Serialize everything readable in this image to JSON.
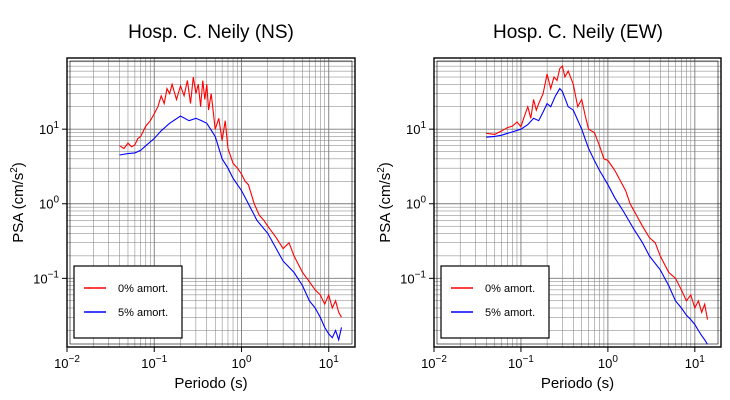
{
  "chart_data": [
    {
      "type": "line",
      "title": "Hosp. C. Neily (NS)",
      "xlabel": "Periodo (s)",
      "ylabel": "PSA (cm/s²)",
      "xscale": "log",
      "yscale": "log",
      "xlim": [
        0.01,
        20
      ],
      "ylim": [
        0.012,
        90
      ],
      "grid": true,
      "legend_position": "bottom-left",
      "xticks": [
        {
          "base": "10",
          "exp": "−2",
          "value": 0.01
        },
        {
          "base": "10",
          "exp": "−1",
          "value": 0.1
        },
        {
          "base": "10",
          "exp": "0",
          "value": 1
        },
        {
          "base": "10",
          "exp": "1",
          "value": 10
        }
      ],
      "yticks": [
        {
          "base": "10",
          "exp": "−1",
          "value": 0.1
        },
        {
          "base": "10",
          "exp": "0",
          "value": 1
        },
        {
          "base": "10",
          "exp": "1",
          "value": 10
        }
      ],
      "series": [
        {
          "name": "0% amort.",
          "color": "#ff0000",
          "x": [
            0.04,
            0.045,
            0.05,
            0.055,
            0.06,
            0.065,
            0.07,
            0.08,
            0.09,
            0.1,
            0.11,
            0.12,
            0.13,
            0.14,
            0.15,
            0.16,
            0.18,
            0.2,
            0.22,
            0.24,
            0.26,
            0.28,
            0.3,
            0.32,
            0.34,
            0.36,
            0.38,
            0.4,
            0.42,
            0.45,
            0.5,
            0.55,
            0.6,
            0.65,
            0.7,
            0.8,
            0.9,
            1.0,
            1.1,
            1.2,
            1.4,
            1.6,
            1.8,
            2.0,
            2.5,
            3.0,
            3.5,
            4.0,
            5.0,
            6.0,
            7.0,
            8.0,
            9.0,
            10.0,
            11.0,
            12.0,
            13.0,
            14.0
          ],
          "y": [
            6,
            5.5,
            6.5,
            5.8,
            6.2,
            7.5,
            8,
            11,
            13,
            16,
            20,
            28,
            22,
            35,
            30,
            40,
            25,
            38,
            28,
            45,
            22,
            50,
            30,
            40,
            20,
            45,
            25,
            40,
            18,
            30,
            10,
            14,
            7,
            13,
            5.5,
            3.5,
            3.0,
            2.5,
            2.0,
            1.8,
            1.0,
            0.7,
            0.6,
            0.5,
            0.35,
            0.25,
            0.3,
            0.2,
            0.12,
            0.09,
            0.07,
            0.06,
            0.045,
            0.06,
            0.04,
            0.05,
            0.035,
            0.03
          ]
        },
        {
          "name": "5% amort.",
          "color": "#0000ff",
          "x": [
            0.04,
            0.05,
            0.06,
            0.07,
            0.08,
            0.1,
            0.12,
            0.15,
            0.2,
            0.25,
            0.3,
            0.35,
            0.4,
            0.5,
            0.6,
            0.7,
            0.8,
            1.0,
            1.2,
            1.5,
            2.0,
            2.5,
            3.0,
            4.0,
            5.0,
            6.0,
            7.0,
            8.0,
            9.0,
            10.0,
            11.0,
            12.0,
            13.0,
            14.0
          ],
          "y": [
            4.5,
            4.7,
            4.8,
            5.2,
            6.0,
            7.5,
            9.5,
            12,
            15,
            13,
            14,
            13,
            12,
            8,
            4,
            3,
            2.2,
            1.5,
            1.0,
            0.6,
            0.4,
            0.25,
            0.17,
            0.12,
            0.08,
            0.05,
            0.04,
            0.03,
            0.022,
            0.018,
            0.016,
            0.02,
            0.015,
            0.022
          ]
        }
      ]
    },
    {
      "type": "line",
      "title": "Hosp. C. Neily (EW)",
      "xlabel": "Periodo (s)",
      "ylabel": "PSA (cm/s²)",
      "xscale": "log",
      "yscale": "log",
      "xlim": [
        0.01,
        20
      ],
      "ylim": [
        0.012,
        90
      ],
      "grid": true,
      "legend_position": "bottom-left",
      "xticks": [
        {
          "base": "10",
          "exp": "−2",
          "value": 0.01
        },
        {
          "base": "10",
          "exp": "−1",
          "value": 0.1
        },
        {
          "base": "10",
          "exp": "0",
          "value": 1
        },
        {
          "base": "10",
          "exp": "1",
          "value": 10
        }
      ],
      "yticks": [
        {
          "base": "10",
          "exp": "−1",
          "value": 0.1
        },
        {
          "base": "10",
          "exp": "0",
          "value": 1
        },
        {
          "base": "10",
          "exp": "1",
          "value": 10
        }
      ],
      "series": [
        {
          "name": "0% amort.",
          "color": "#ff0000",
          "x": [
            0.04,
            0.05,
            0.06,
            0.07,
            0.08,
            0.09,
            0.1,
            0.11,
            0.12,
            0.13,
            0.14,
            0.15,
            0.16,
            0.18,
            0.2,
            0.22,
            0.24,
            0.26,
            0.28,
            0.3,
            0.32,
            0.35,
            0.4,
            0.45,
            0.5,
            0.55,
            0.6,
            0.7,
            0.8,
            0.9,
            1.0,
            1.2,
            1.4,
            1.6,
            1.8,
            2.0,
            2.5,
            3.0,
            3.5,
            4.0,
            5.0,
            6.0,
            7.0,
            8.0,
            9.0,
            10.0,
            11.0,
            12.0,
            13.0,
            14.0
          ],
          "y": [
            8.8,
            8.5,
            9.5,
            10.5,
            11,
            12.5,
            10.8,
            15,
            20,
            14,
            25,
            18,
            22,
            30,
            55,
            35,
            50,
            45,
            65,
            70,
            50,
            60,
            40,
            20,
            25,
            15,
            10,
            9,
            6,
            4,
            3.8,
            2.8,
            2.0,
            1.5,
            1.0,
            0.8,
            0.5,
            0.35,
            0.3,
            0.2,
            0.12,
            0.1,
            0.07,
            0.05,
            0.06,
            0.04,
            0.05,
            0.035,
            0.045,
            0.028
          ]
        },
        {
          "name": "5% amort.",
          "color": "#0000ff",
          "x": [
            0.04,
            0.05,
            0.06,
            0.07,
            0.08,
            0.1,
            0.12,
            0.14,
            0.16,
            0.18,
            0.2,
            0.22,
            0.25,
            0.28,
            0.3,
            0.35,
            0.4,
            0.5,
            0.6,
            0.7,
            0.8,
            1.0,
            1.2,
            1.5,
            2.0,
            2.5,
            3.0,
            4.0,
            5.0,
            6.0,
            7.0,
            8.0,
            9.0,
            10.0,
            11.0,
            12.0,
            13.0,
            14.0
          ],
          "y": [
            7.8,
            8.0,
            8.3,
            8.8,
            9.2,
            10,
            11.5,
            14,
            13,
            17,
            22,
            20,
            28,
            35,
            32,
            20,
            18,
            10,
            5.5,
            3.8,
            2.8,
            1.8,
            1.2,
            0.8,
            0.45,
            0.3,
            0.2,
            0.13,
            0.08,
            0.05,
            0.04,
            0.032,
            0.028,
            0.024,
            0.02,
            0.017,
            0.015,
            0.013
          ]
        }
      ]
    }
  ]
}
